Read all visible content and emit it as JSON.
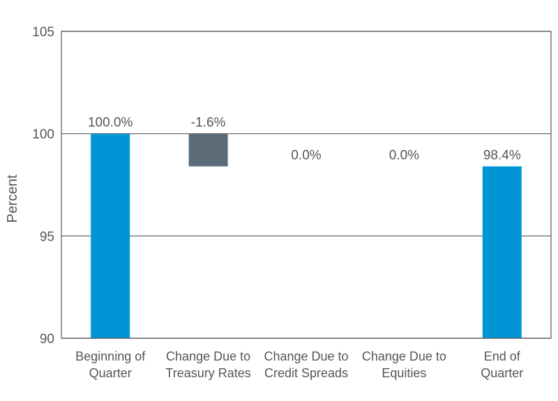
{
  "chart_data": {
    "type": "bar",
    "subtype": "waterfall",
    "title": "",
    "xlabel": "",
    "ylabel": "Percent",
    "ylim": [
      90,
      105
    ],
    "yticks": [
      90,
      95,
      100,
      105
    ],
    "grid": true,
    "legend": "none",
    "colors": {
      "total": "#0096d6",
      "change": "#5b6b78"
    },
    "categories": [
      [
        "Beginning of",
        "Quarter"
      ],
      [
        "Change Due to",
        "Treasury Rates"
      ],
      [
        "Change Due to",
        "Credit Spreads"
      ],
      [
        "Change Due to",
        "Equities"
      ],
      [
        "End of",
        "Quarter"
      ]
    ],
    "bars": [
      {
        "kind": "total",
        "start": 90,
        "end": 100.0,
        "label": "100.0%"
      },
      {
        "kind": "change",
        "start": 100.0,
        "end": 98.4,
        "label": "-1.6%"
      },
      {
        "kind": "change",
        "start": 98.4,
        "end": 98.4,
        "label": "0.0%"
      },
      {
        "kind": "change",
        "start": 98.4,
        "end": 98.4,
        "label": "0.0%"
      },
      {
        "kind": "total",
        "start": 90,
        "end": 98.4,
        "label": "98.4%"
      }
    ]
  }
}
